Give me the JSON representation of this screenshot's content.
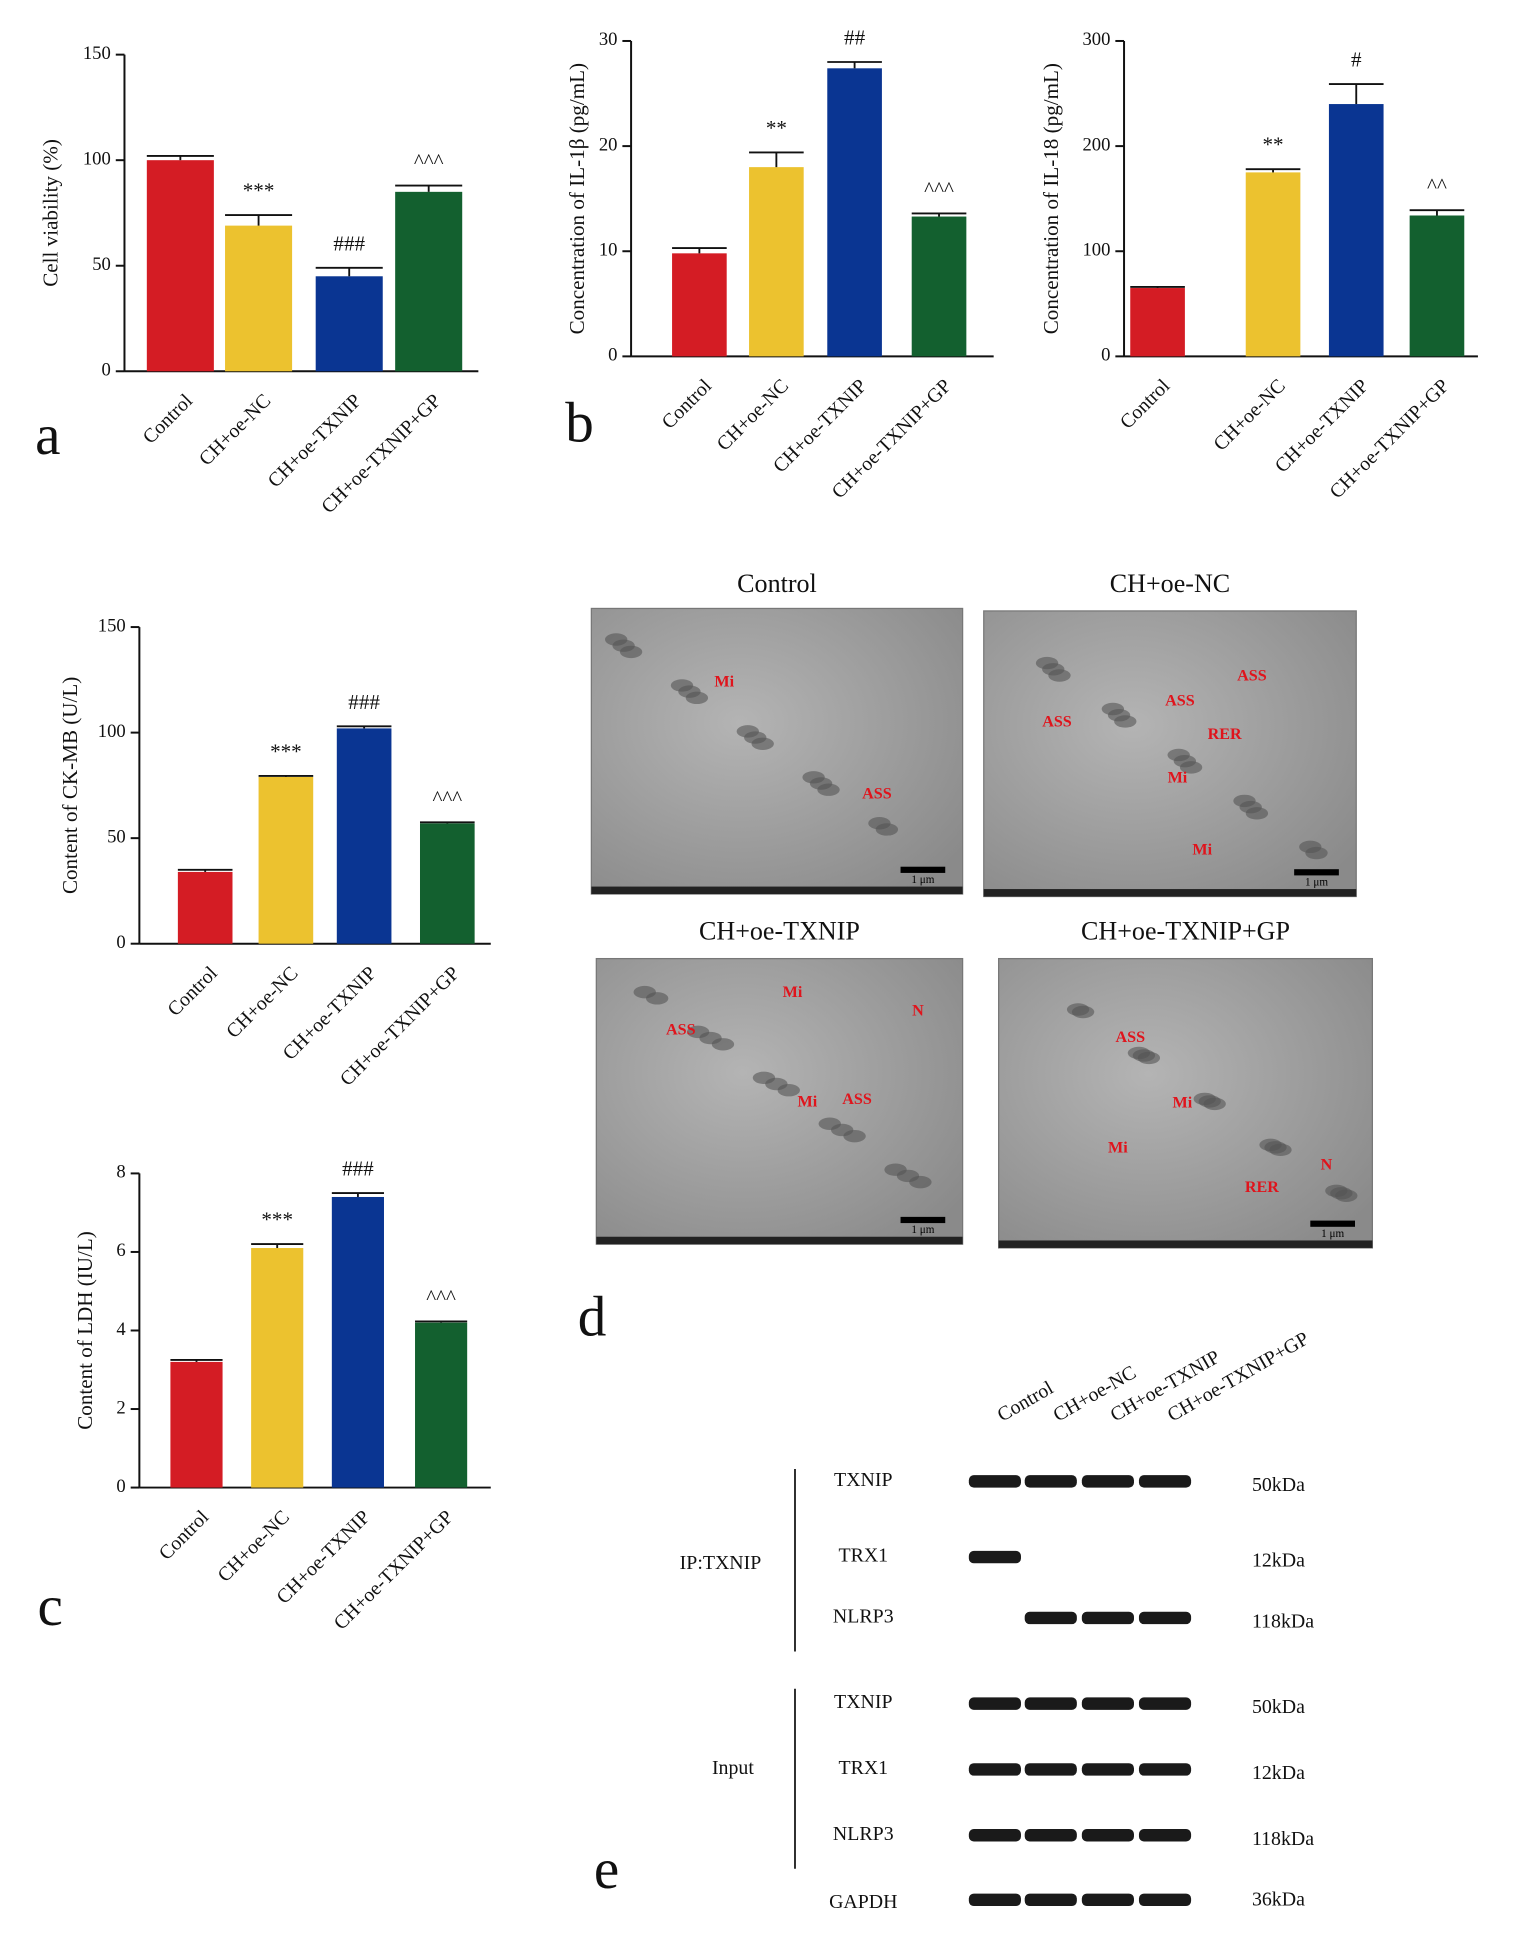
{
  "chart_data": [
    {
      "type": "bar",
      "ylabel": "Cell viability (%)",
      "categories": [
        "Control",
        "CH+oe-NC",
        "CH+oe-TXNIP",
        "CH+oe-TXNIP+GP"
      ],
      "values": [
        100,
        69,
        45,
        85
      ],
      "errors": [
        2,
        5,
        4,
        3
      ],
      "annotations": [
        null,
        "***",
        "###",
        "^^^"
      ],
      "colors": [
        "#d41c24",
        "#ecc22f",
        "#0a3592",
        "#13602f"
      ],
      "ylim": [
        0,
        150
      ],
      "yticks": [
        0,
        50,
        100,
        150
      ]
    },
    {
      "type": "bar",
      "ylabel": "Concentration of IL-1β (pg/mL)",
      "categories": [
        "Control",
        "CH+oe-NC",
        "CH+oe-TXNIP",
        "CH+oe-TXNIP+GP"
      ],
      "values": [
        9.8,
        18,
        27.4,
        13.3
      ],
      "errors": [
        0.5,
        1.4,
        0.6,
        0.3
      ],
      "annotations": [
        null,
        "**",
        "##",
        "^^^"
      ],
      "colors": [
        "#d41c24",
        "#ecc22f",
        "#0a3592",
        "#13602f"
      ],
      "ylim": [
        0,
        30
      ],
      "yticks": [
        0,
        10,
        20,
        30
      ]
    },
    {
      "type": "bar",
      "ylabel": "Concentration of IL-18 (pg/mL)",
      "categories": [
        "Control",
        "CH+oe-NC",
        "CH+oe-TXNIP",
        "CH+oe-TXNIP+GP"
      ],
      "values": [
        65,
        175,
        240,
        134
      ],
      "errors": [
        1,
        3,
        19,
        5
      ],
      "annotations": [
        null,
        "**",
        "#",
        "^^"
      ],
      "colors": [
        "#d41c24",
        "#ecc22f",
        "#0a3592",
        "#13602f"
      ],
      "ylim": [
        0,
        300
      ],
      "yticks": [
        0,
        100,
        200,
        300
      ]
    },
    {
      "type": "bar",
      "ylabel": "Content of CK-MB (U/L)",
      "categories": [
        "Control",
        "CH+oe-NC",
        "CH+oe-TXNIP",
        "CH+oe-TXNIP+GP"
      ],
      "values": [
        34,
        79,
        102,
        57
      ],
      "errors": [
        1,
        0.5,
        1,
        0.5
      ],
      "annotations": [
        null,
        "***",
        "###",
        "^^^"
      ],
      "colors": [
        "#d41c24",
        "#ecc22f",
        "#0a3592",
        "#13602f"
      ],
      "ylim": [
        0,
        150
      ],
      "yticks": [
        0,
        50,
        100,
        150
      ]
    },
    {
      "type": "bar",
      "ylabel": "Content of LDH (IU/L)",
      "categories": [
        "Control",
        "CH+oe-NC",
        "CH+oe-TXNIP",
        "CH+oe-TXNIP+GP"
      ],
      "values": [
        3.2,
        6.1,
        7.4,
        4.2
      ],
      "errors": [
        0.05,
        0.1,
        0.1,
        0.03
      ],
      "annotations": [
        null,
        "***",
        "###",
        "^^^"
      ],
      "colors": [
        "#d41c24",
        "#ecc22f",
        "#0a3592",
        "#13602f"
      ],
      "ylim": [
        0,
        8
      ],
      "yticks": [
        0,
        2,
        4,
        6,
        8
      ]
    }
  ],
  "panel_letters": [
    "a",
    "b",
    "c",
    "d",
    "e"
  ],
  "tem": {
    "panels": [
      {
        "title": "Control",
        "labels": [
          "Mi",
          "ASS"
        ],
        "scale": "1 μm"
      },
      {
        "title": "CH+oe-NC",
        "labels": [
          "ASS",
          "ASS",
          "ASS",
          "RER",
          "Mi",
          "Mi"
        ],
        "scale": "1 μm"
      },
      {
        "title": "CH+oe-TXNIP",
        "labels": [
          "ASS",
          "Mi",
          "N",
          "Mi",
          "ASS"
        ],
        "scale": "1 μm"
      },
      {
        "title": "CH+oe-TXNIP+GP",
        "labels": [
          "ASS",
          "Mi",
          "Mi",
          "RER",
          "N"
        ],
        "scale": "1 μm"
      }
    ]
  },
  "blot": {
    "lanes": [
      "Control",
      "CH+oe-NC",
      "CH+oe-TXNIP",
      "CH+oe-TXNIP+GP"
    ],
    "groups": [
      {
        "name": "IP:TXNIP",
        "rows": [
          {
            "protein": "TXNIP",
            "size": "50kDa"
          },
          {
            "protein": "TRX1",
            "size": "12kDa"
          },
          {
            "protein": "NLRP3",
            "size": "118kDa"
          }
        ]
      },
      {
        "name": "Input",
        "rows": [
          {
            "protein": "TXNIP",
            "size": "50kDa"
          },
          {
            "protein": "TRX1",
            "size": "12kDa"
          },
          {
            "protein": "NLRP3",
            "size": "118kDa"
          }
        ]
      }
    ],
    "loading": {
      "protein": "GAPDH",
      "size": "36kDa"
    }
  }
}
